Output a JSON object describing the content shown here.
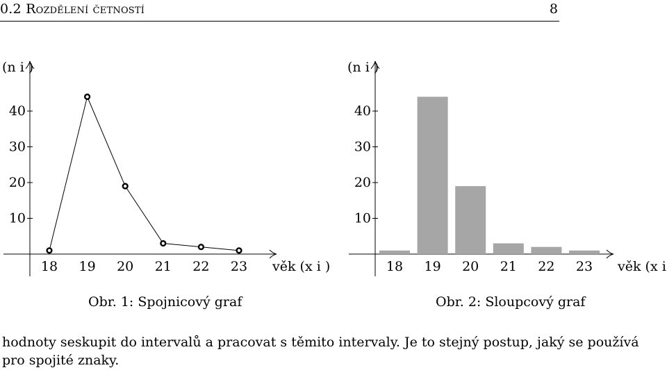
{
  "header": {
    "section_number": "0.2",
    "section_title": "Rozdělení četností",
    "page_number": "8"
  },
  "chart_data": [
    {
      "type": "line",
      "y_axis_label": "(n i )",
      "x_axis_label": "věk (x i )",
      "caption": "Obr. 1: Spojnicový graf",
      "categories": [
        "18",
        "19",
        "20",
        "21",
        "22",
        "23"
      ],
      "values": [
        1,
        44,
        19,
        3,
        2,
        1
      ],
      "yticks": [
        "10",
        "20",
        "30",
        "40"
      ],
      "ylim": [
        0,
        50
      ],
      "marker": "circle",
      "line_color": "#000000"
    },
    {
      "type": "bar",
      "y_axis_label": "(n i )",
      "x_axis_label": "věk (x i )",
      "caption": "Obr. 2: Sloupcový graf",
      "categories": [
        "18",
        "19",
        "20",
        "21",
        "22",
        "23"
      ],
      "values": [
        1,
        44,
        19,
        3,
        2,
        1
      ],
      "yticks": [
        "10",
        "20",
        "30",
        "40"
      ],
      "ylim": [
        0,
        50
      ],
      "bar_color": "#a6a6a6"
    }
  ],
  "text": {
    "paragraph": "hodnoty seskupit do intervalů a pracovat s těmito intervaly. Je to stejný postup, jaký se používá pro spojité znaky."
  }
}
